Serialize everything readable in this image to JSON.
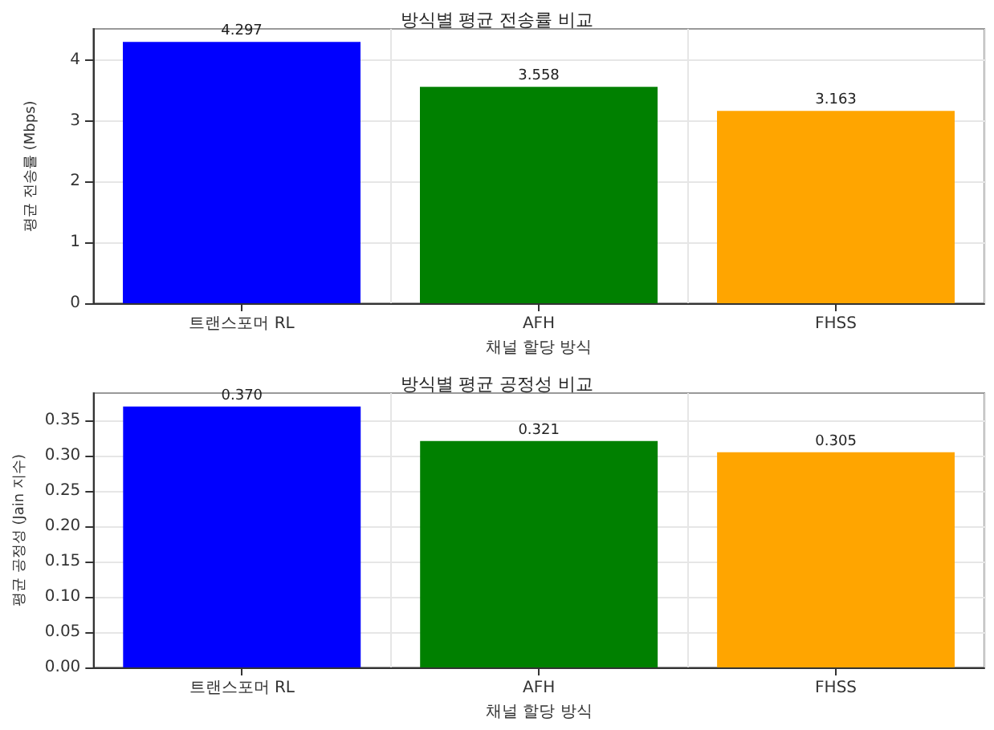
{
  "chart_data": [
    {
      "type": "bar",
      "title": "방식별 평균 전송률 비교",
      "xlabel": "채널 할당 방식",
      "ylabel": "평균 전송률 (Mbps)",
      "categories": [
        "트랜스포머 RL",
        "AFH",
        "FHSS"
      ],
      "values": [
        4.297,
        3.558,
        3.163
      ],
      "colors": [
        "#0000ff",
        "#008000",
        "#ffa500"
      ],
      "value_labels": [
        "4.297",
        "3.558",
        "3.163"
      ],
      "ylim": [
        0,
        4.51
      ],
      "yticks": [
        0,
        1,
        2,
        3,
        4
      ],
      "grid": true
    },
    {
      "type": "bar",
      "title": "방식별 평균 공정성 비교",
      "xlabel": "채널 할당 방식",
      "ylabel": "평균 공정성 (Jain 지수)",
      "categories": [
        "트랜스포머 RL",
        "AFH",
        "FHSS"
      ],
      "values": [
        0.37,
        0.321,
        0.305
      ],
      "colors": [
        "#0000ff",
        "#008000",
        "#ffa500"
      ],
      "value_labels": [
        "0.370",
        "0.321",
        "0.305"
      ],
      "ylim": [
        0,
        0.389
      ],
      "yticks": [
        {
          "value": 0,
          "label": "0.00"
        },
        {
          "value": 0.05,
          "label": "0.05"
        },
        {
          "value": 0.1,
          "label": "0.10"
        },
        {
          "value": 0.15,
          "label": "0.15"
        },
        {
          "value": 0.2,
          "label": "0.20"
        },
        {
          "value": 0.25,
          "label": "0.25"
        },
        {
          "value": 0.3,
          "label": "0.30"
        },
        {
          "value": 0.35,
          "label": "0.35"
        }
      ],
      "grid": true
    }
  ]
}
